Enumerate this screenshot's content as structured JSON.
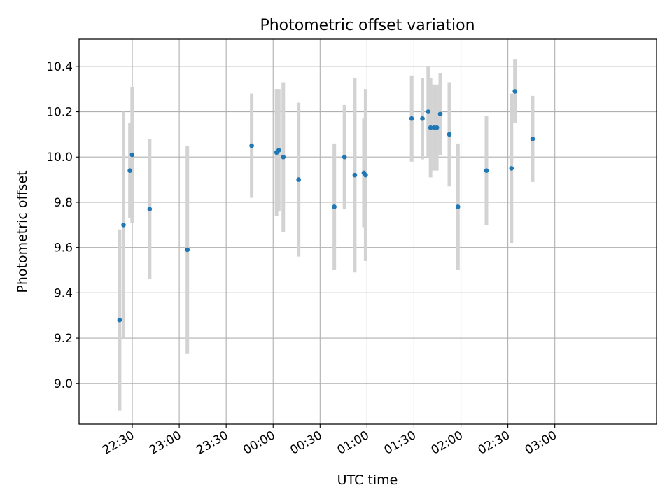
{
  "chart_data": {
    "type": "scatter",
    "title": "Photometric offset variation",
    "xlabel": "UTC time",
    "ylabel": "Photometric offset",
    "x_is_time": true,
    "x_start_label": "22:00",
    "xlim": [
      -4,
      365
    ],
    "ylim": [
      8.82,
      10.52
    ],
    "xticks": [
      30,
      60,
      90,
      120,
      150,
      180,
      210,
      240,
      270,
      300
    ],
    "xtick_labels": [
      "22:30",
      "23:00",
      "23:30",
      "00:00",
      "00:30",
      "01:00",
      "01:30",
      "02:00",
      "02:30",
      "03:00"
    ],
    "yticks": [
      9.0,
      9.2,
      9.4,
      9.6,
      9.8,
      10.0,
      10.2,
      10.4
    ],
    "ytick_labels": [
      "9.0",
      "9.2",
      "9.4",
      "9.6",
      "9.8",
      "10.0",
      "10.2",
      "10.4"
    ],
    "grid": true,
    "colors": {
      "points": "#1f77b4",
      "errorbars": "#d3d3d3",
      "grid": "#b0b0b0"
    },
    "series": [
      {
        "points": [
          {
            "t": "22:21.9",
            "y": 9.28,
            "err": 0.4
          },
          {
            "t": "22:24.4",
            "y": 9.7,
            "err": 0.5
          },
          {
            "t": "22:28.5",
            "y": 9.94,
            "err": 0.21
          },
          {
            "t": "22:29.9",
            "y": 10.01,
            "err": 0.3
          },
          {
            "t": "22:41.1",
            "y": 9.77,
            "err": 0.31
          },
          {
            "t": "23:05.2",
            "y": 9.59,
            "err": 0.46
          },
          {
            "t": "23:46.3",
            "y": 10.05,
            "err": 0.23
          },
          {
            "t": "00:02.2",
            "y": 10.02,
            "err": 0.28
          },
          {
            "t": "00:03.6",
            "y": 10.03,
            "err": 0.27
          },
          {
            "t": "00:06.5",
            "y": 10.0,
            "err": 0.33
          },
          {
            "t": "00:16.3",
            "y": 9.9,
            "err": 0.34
          },
          {
            "t": "00:39.1",
            "y": 9.78,
            "err": 0.28
          },
          {
            "t": "00:45.6",
            "y": 10.0,
            "err": 0.23
          },
          {
            "t": "00:52.2",
            "y": 9.92,
            "err": 0.43
          },
          {
            "t": "00:58.0",
            "y": 9.93,
            "err": 0.24
          },
          {
            "t": "00:59.1",
            "y": 9.92,
            "err": 0.38
          },
          {
            "t": "01:28.5",
            "y": 10.17,
            "err": 0.19
          },
          {
            "t": "01:35.4",
            "y": 10.17,
            "err": 0.18
          },
          {
            "t": "01:39.1",
            "y": 10.2,
            "err": 0.2
          },
          {
            "t": "01:40.6",
            "y": 10.13,
            "err": 0.22
          },
          {
            "t": "01:42.8",
            "y": 10.13,
            "err": 0.19
          },
          {
            "t": "01:44.6",
            "y": 10.13,
            "err": 0.19
          },
          {
            "t": "01:46.8",
            "y": 10.19,
            "err": 0.18
          },
          {
            "t": "01:52.6",
            "y": 10.1,
            "err": 0.23
          },
          {
            "t": "01:58.1",
            "y": 9.78,
            "err": 0.28
          },
          {
            "t": "02:16.3",
            "y": 9.94,
            "err": 0.24
          },
          {
            "t": "02:32.3",
            "y": 9.95,
            "err": 0.33
          },
          {
            "t": "02:34.5",
            "y": 10.29,
            "err": 0.14
          },
          {
            "t": "02:45.8",
            "y": 10.08,
            "err": 0.19
          }
        ]
      }
    ]
  }
}
